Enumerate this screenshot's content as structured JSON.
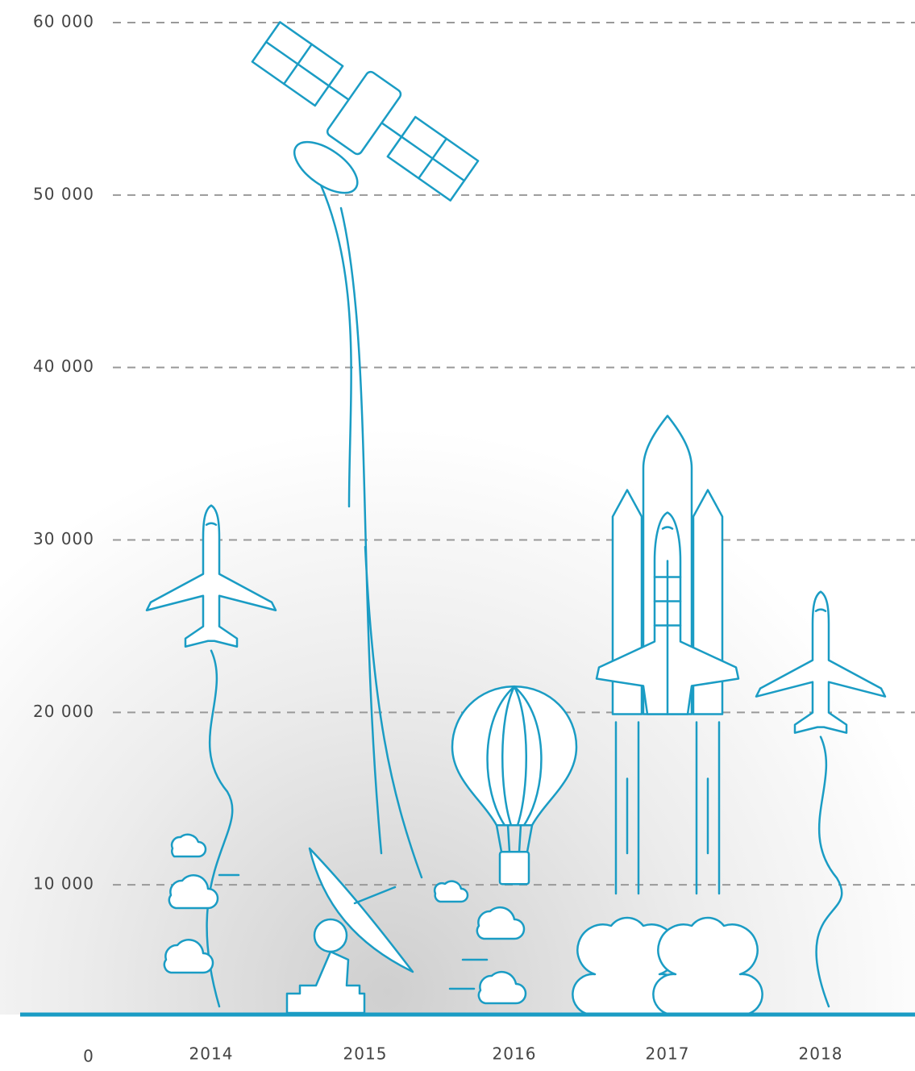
{
  "chart_data": {
    "type": "pictorial",
    "categories": [
      "2014",
      "2015",
      "2016",
      "2017",
      "2018"
    ],
    "values": [
      32000,
      60000,
      21500,
      37200,
      27000
    ],
    "icons": [
      "plane",
      "satellite",
      "balloon",
      "shuttle",
      "plane"
    ],
    "color": "#1a9cc4",
    "ylim": [
      0,
      60000
    ],
    "yticks": [
      0,
      {
        "value": 10000,
        "label": "10 000"
      },
      {
        "value": 20000,
        "label": "20 000"
      },
      {
        "value": 30000,
        "label": "30 000"
      },
      {
        "value": 40000,
        "label": "40 000"
      },
      {
        "value": 50000,
        "label": "50 000"
      },
      {
        "value": 60000,
        "label": "60 000"
      }
    ],
    "grid": true
  }
}
